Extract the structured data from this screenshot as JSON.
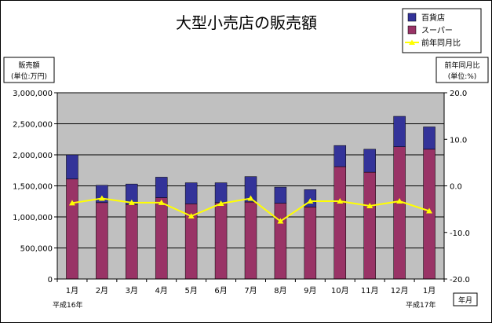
{
  "chart_data": {
    "type": "bar",
    "title": "大型小売店の販売額",
    "categories": [
      "1月",
      "2月",
      "3月",
      "4月",
      "5月",
      "6月",
      "7月",
      "8月",
      "9月",
      "10月",
      "11月",
      "12月",
      "1月"
    ],
    "series": [
      {
        "name": "スーパー",
        "values": [
          1610000,
          1230000,
          1200000,
          1310000,
          1210000,
          1230000,
          1240000,
          1220000,
          1160000,
          1810000,
          1720000,
          2130000,
          2090000
        ]
      },
      {
        "name": "百貨店",
        "values": [
          390000,
          280000,
          330000,
          330000,
          340000,
          320000,
          410000,
          260000,
          280000,
          340000,
          370000,
          490000,
          360000
        ]
      },
      {
        "name": "前年同月比",
        "axis": "right",
        "values": [
          -3.7,
          -2.7,
          -3.6,
          -3.6,
          -6.5,
          -3.8,
          -2.7,
          -7.6,
          -3.3,
          -3.3,
          -4.3,
          -3.3,
          -5.4
        ]
      }
    ],
    "y_left": {
      "min": 0,
      "max": 3000000,
      "ticks": [
        "0",
        "500,000",
        "1,000,000",
        "1,500,000",
        "2,000,000",
        "2,500,000",
        "3,000,000"
      ],
      "label_line1": "販売額",
      "label_line2": "(単位:万円)"
    },
    "y_right": {
      "min": -20,
      "max": 20,
      "ticks": [
        "-20.0",
        "-10.0",
        "0.0",
        "10.0",
        "20.0"
      ],
      "label_line1": "前年同月比",
      "label_line2": "(単位:%)"
    },
    "x_label": "年月",
    "year_start": "平成16年",
    "year_end": "平成17年",
    "legend": {
      "placement": "top-right",
      "items": [
        "百貨店",
        "スーパー",
        "前年同月比"
      ]
    },
    "grid": true,
    "colors": {
      "super": "#993366",
      "dept": "#333399",
      "ratio": "#ffff00",
      "plot_bg": "#c0c0c0"
    }
  }
}
